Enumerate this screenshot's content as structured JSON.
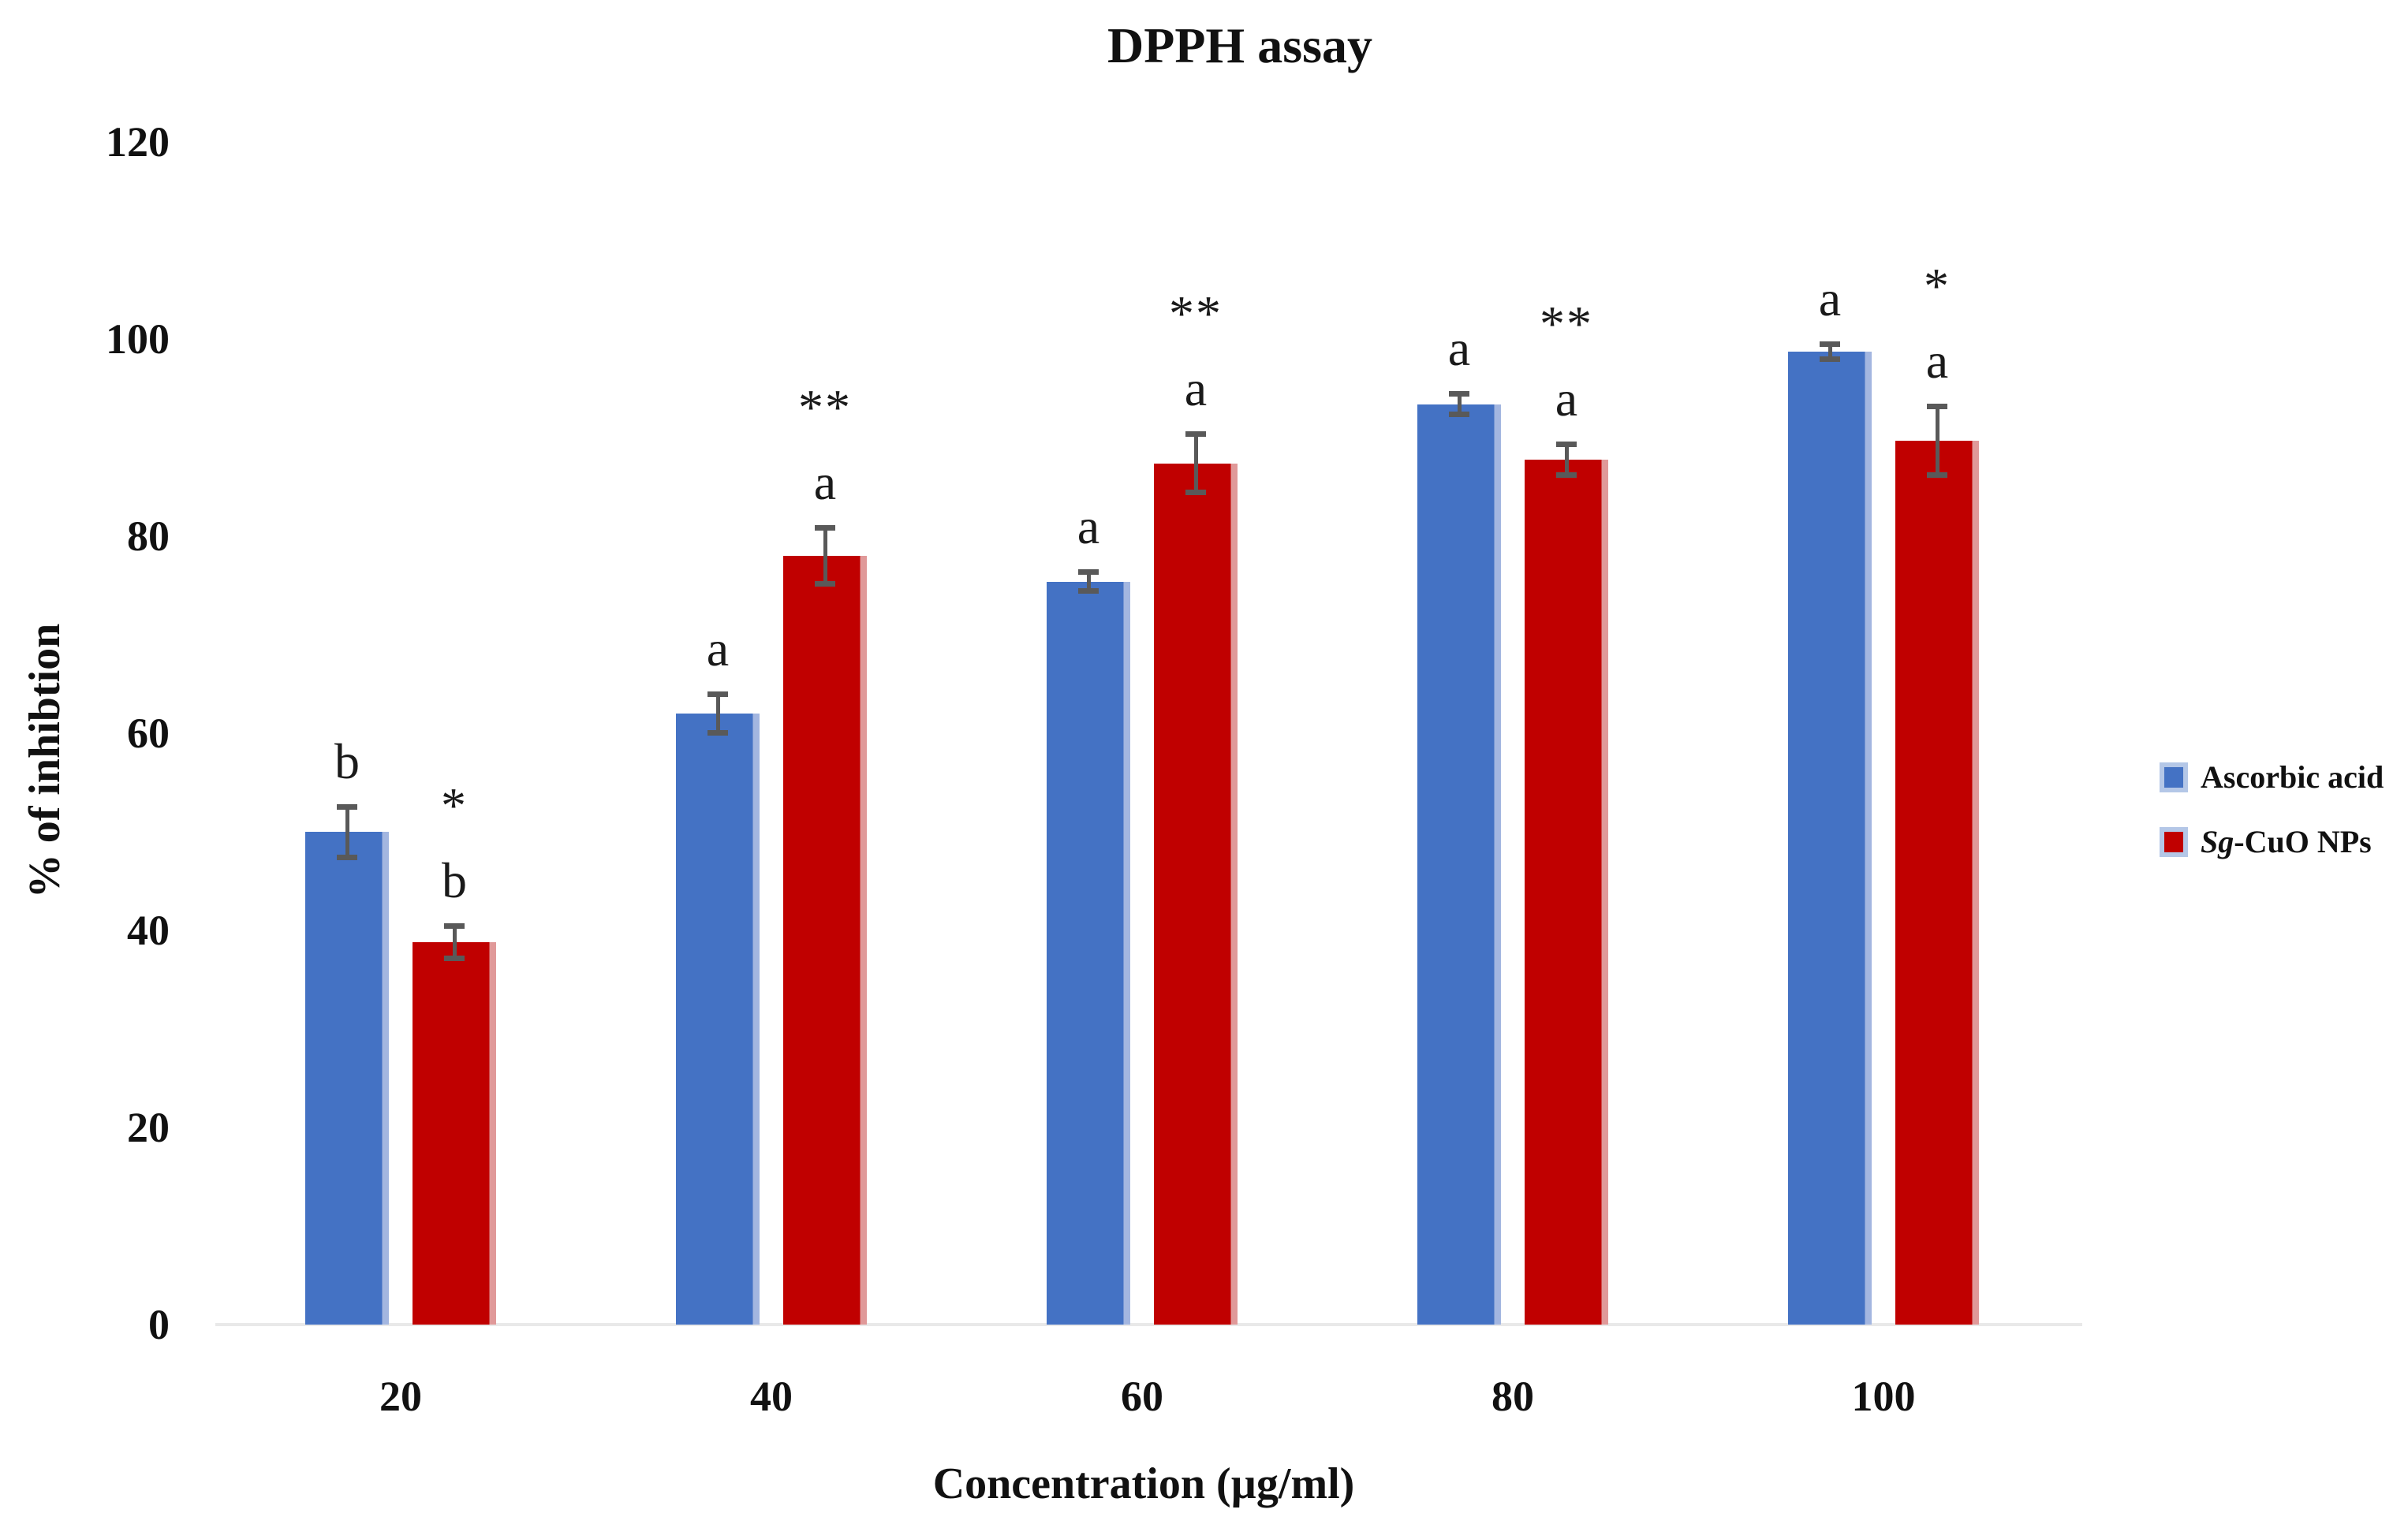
{
  "figure": {
    "title": "DPPH assay"
  },
  "axes": {
    "y_title": "% of inhibtion",
    "x_title": "Concentration (µg/ml)",
    "y_ticks": [
      "0",
      "20",
      "40",
      "60",
      "80",
      "100",
      "120"
    ],
    "x_ticks": [
      "20",
      "40",
      "60",
      "80",
      "100"
    ]
  },
  "legend": {
    "items": [
      {
        "name_italic": "",
        "name_rest": "Ascorbic acid",
        "color": "#4472C4"
      },
      {
        "name_italic": "Sg",
        "name_rest": "-CuO NPs",
        "color": "#C00000"
      }
    ]
  },
  "chart_data": {
    "type": "bar",
    "title": "DPPH assay",
    "xlabel": "Concentration (µg/ml)",
    "ylabel": "% of inhibtion",
    "categories": [
      20,
      40,
      60,
      80,
      100
    ],
    "ylim": [
      0,
      120
    ],
    "y_tick_step": 20,
    "grid": false,
    "legend_position": "right",
    "error_bar_color": "#595959",
    "axis_line_color": "#E9E9E9",
    "series": [
      {
        "name": "Ascorbic acid",
        "color": "#4472C4",
        "edge_color": "#A3B6E0",
        "values": [
          50,
          62,
          75.4,
          93.4,
          98.7
        ],
        "errors": [
          2.6,
          2.0,
          1.0,
          1.1,
          0.8
        ],
        "sig_letters": [
          "b",
          "a",
          "a",
          "a",
          "a"
        ],
        "sig_stars": [
          "",
          "",
          "",
          "",
          ""
        ]
      },
      {
        "name": "Sg-CuO NPs",
        "color": "#C00000",
        "edge_color": "#E09999",
        "values": [
          38.8,
          78,
          87.4,
          87.8,
          89.7
        ],
        "errors": [
          1.7,
          2.9,
          3.0,
          1.6,
          3.5
        ],
        "sig_letters": [
          "b",
          "a",
          "a",
          "a",
          "a"
        ],
        "sig_stars": [
          "*",
          "**",
          "**",
          "**",
          "*"
        ]
      }
    ]
  }
}
